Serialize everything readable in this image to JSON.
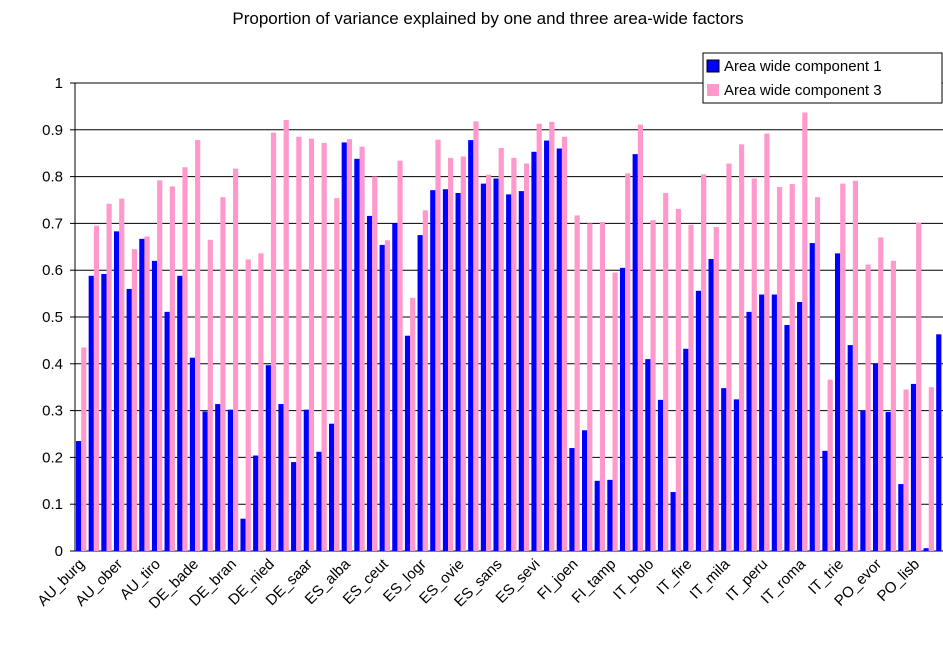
{
  "chart_data": {
    "type": "bar",
    "title": "Proportion of variance explained by one and three area-wide factors",
    "categories": [
      "AU_burg",
      null,
      null,
      "AU_ober",
      null,
      null,
      "AU_tiro",
      null,
      null,
      "DE_bade",
      null,
      null,
      "DE_bran",
      null,
      null,
      "DE_nied",
      null,
      null,
      "DE_saar",
      null,
      null,
      "ES_alba",
      null,
      null,
      "ES_ceut",
      null,
      null,
      "ES_logr",
      null,
      null,
      "ES_ovie",
      null,
      null,
      "ES_sans",
      null,
      null,
      "ES_sevi",
      null,
      null,
      "FI_joen",
      null,
      null,
      "FI_tamp",
      null,
      null,
      "IT_bolo",
      null,
      null,
      "IT_fire",
      null,
      null,
      "IT_mila",
      null,
      null,
      "IT_peru",
      null,
      null,
      "IT_roma",
      null,
      null,
      "IT_trie",
      null,
      null,
      "PO_evor",
      null,
      null,
      "PO_lisb",
      null,
      null
    ],
    "series": [
      {
        "name": "Area wide component 1",
        "color": "#0000ff",
        "values": [
          0.235,
          0.588,
          0.592,
          0.683,
          0.56,
          0.667,
          0.62,
          0.511,
          0.588,
          0.413,
          0.298,
          0.314,
          0.302,
          0.069,
          0.204,
          0.397,
          0.314,
          0.19,
          0.302,
          0.212,
          0.272,
          0.873,
          0.838,
          0.716,
          0.654,
          0.7,
          0.46,
          0.675,
          0.771,
          0.773,
          0.765,
          0.878,
          0.785,
          0.796,
          0.762,
          0.769,
          0.853,
          0.877,
          0.86,
          0.22,
          0.258,
          0.15,
          0.152,
          0.605,
          0.848,
          0.41,
          0.323,
          0.126,
          0.432,
          0.556,
          0.624,
          0.348,
          0.324,
          0.511,
          0.548,
          0.548,
          0.483,
          0.532,
          0.658,
          0.214,
          0.636,
          0.44,
          0.3,
          0.401,
          0.297,
          0.143,
          0.357,
          0.006,
          0.463
        ]
      },
      {
        "name": "Area wide component 3",
        "color": "#ff99cc",
        "values": [
          0.435,
          0.695,
          0.742,
          0.753,
          0.645,
          0.672,
          0.792,
          0.779,
          0.82,
          0.878,
          0.665,
          0.756,
          0.817,
          0.623,
          0.636,
          0.894,
          0.921,
          0.885,
          0.881,
          0.872,
          0.754,
          0.88,
          0.864,
          0.8,
          0.664,
          0.834,
          0.541,
          0.728,
          0.879,
          0.84,
          0.843,
          0.918,
          0.804,
          0.861,
          0.84,
          0.828,
          0.913,
          0.917,
          0.885,
          0.717,
          0.7,
          0.703,
          0.595,
          0.807,
          0.911,
          0.707,
          0.765,
          0.731,
          0.697,
          0.805,
          0.692,
          0.828,
          0.869,
          0.796,
          0.892,
          0.778,
          0.784,
          0.937,
          0.756,
          0.366,
          0.785,
          0.791,
          0.612,
          0.67,
          0.62,
          0.345,
          0.702,
          0.35,
          null
        ]
      }
    ],
    "ylim": [
      0,
      1
    ],
    "yticks": [
      0,
      0.1,
      0.2,
      0.3,
      0.4,
      0.5,
      0.6,
      0.7,
      0.8,
      0.9,
      1
    ],
    "grid": true,
    "legend": "top-right"
  }
}
